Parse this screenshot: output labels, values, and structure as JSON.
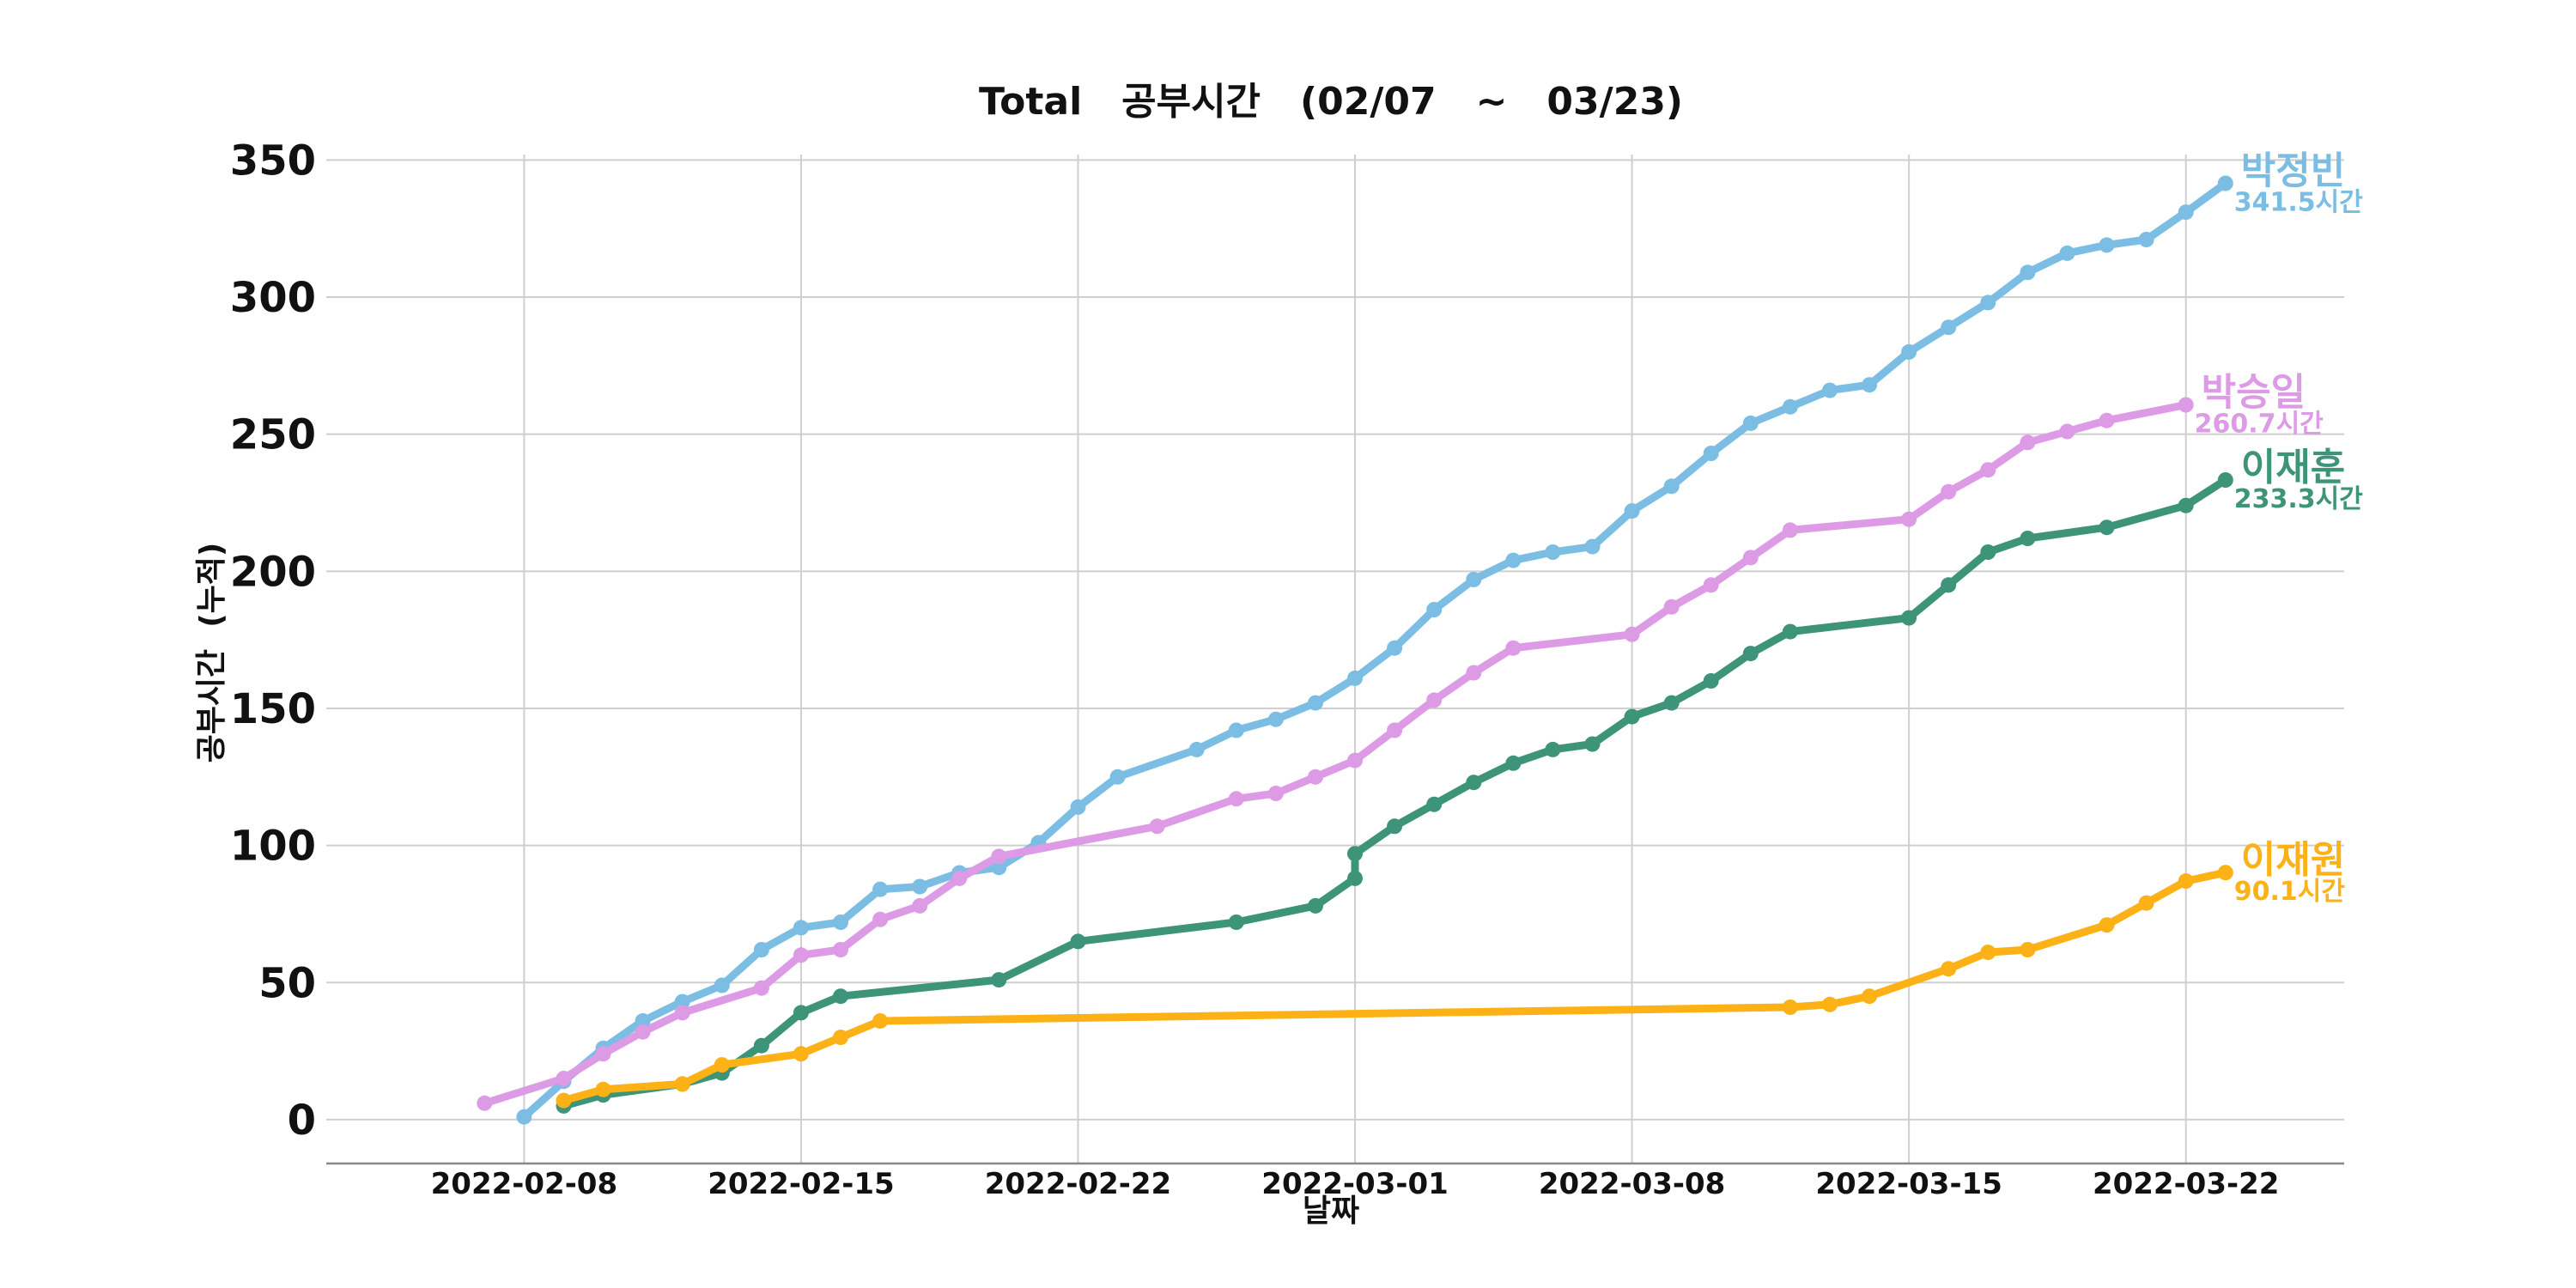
{
  "chart_data": {
    "type": "line",
    "title": "Total   공부시간   (02/07   ~   03/23)",
    "xlabel": "날짜",
    "ylabel": "공부시간  (누적)",
    "x_range": [
      "2022-02-03",
      "2022-03-26"
    ],
    "ylim": [
      -16,
      352
    ],
    "yticks": [
      0,
      50,
      100,
      150,
      200,
      250,
      300,
      350
    ],
    "xticks": [
      "2022-02-08",
      "2022-02-15",
      "2022-02-22",
      "2022-03-01",
      "2022-03-08",
      "2022-03-15",
      "2022-03-22"
    ],
    "grid": true,
    "legend": "none (series labelled at line ends)",
    "series": [
      {
        "name": "박정빈",
        "end_label": "341.5시간",
        "color": "#7bbde3",
        "points": [
          [
            "2022-02-08",
            1
          ],
          [
            "2022-02-09",
            14
          ],
          [
            "2022-02-10",
            26
          ],
          [
            "2022-02-11",
            36
          ],
          [
            "2022-02-12",
            43
          ],
          [
            "2022-02-13",
            49
          ],
          [
            "2022-02-14",
            62
          ],
          [
            "2022-02-15",
            70
          ],
          [
            "2022-02-16",
            72
          ],
          [
            "2022-02-17",
            84
          ],
          [
            "2022-02-18",
            85
          ],
          [
            "2022-02-19",
            90
          ],
          [
            "2022-02-20",
            92
          ],
          [
            "2022-02-21",
            101
          ],
          [
            "2022-02-22",
            114
          ],
          [
            "2022-02-23",
            125
          ],
          [
            "2022-02-25",
            135
          ],
          [
            "2022-02-26",
            142
          ],
          [
            "2022-02-27",
            146
          ],
          [
            "2022-02-28",
            152
          ],
          [
            "2022-03-01",
            161
          ],
          [
            "2022-03-02",
            172
          ],
          [
            "2022-03-03",
            186
          ],
          [
            "2022-03-04",
            197
          ],
          [
            "2022-03-05",
            204
          ],
          [
            "2022-03-06",
            207
          ],
          [
            "2022-03-07",
            209
          ],
          [
            "2022-03-08",
            222
          ],
          [
            "2022-03-09",
            231
          ],
          [
            "2022-03-10",
            243
          ],
          [
            "2022-03-11",
            254
          ],
          [
            "2022-03-12",
            260
          ],
          [
            "2022-03-13",
            266
          ],
          [
            "2022-03-14",
            268
          ],
          [
            "2022-03-15",
            280
          ],
          [
            "2022-03-16",
            289
          ],
          [
            "2022-03-17",
            298
          ],
          [
            "2022-03-18",
            309
          ],
          [
            "2022-03-19",
            316
          ],
          [
            "2022-03-20",
            319
          ],
          [
            "2022-03-21",
            321
          ],
          [
            "2022-03-22",
            331
          ],
          [
            "2022-03-23",
            341.5
          ]
        ]
      },
      {
        "name": "박승일",
        "end_label": "260.7시간",
        "color": "#dd9be6",
        "points": [
          [
            "2022-02-07",
            6
          ],
          [
            "2022-02-09",
            15
          ],
          [
            "2022-02-10",
            24
          ],
          [
            "2022-02-11",
            32
          ],
          [
            "2022-02-12",
            39
          ],
          [
            "2022-02-14",
            48
          ],
          [
            "2022-02-15",
            60
          ],
          [
            "2022-02-16",
            62
          ],
          [
            "2022-02-17",
            73
          ],
          [
            "2022-02-18",
            78
          ],
          [
            "2022-02-19",
            88
          ],
          [
            "2022-02-20",
            96
          ],
          [
            "2022-02-24",
            107
          ],
          [
            "2022-02-26",
            117
          ],
          [
            "2022-02-27",
            119
          ],
          [
            "2022-02-28",
            125
          ],
          [
            "2022-03-01",
            131
          ],
          [
            "2022-03-02",
            142
          ],
          [
            "2022-03-03",
            153
          ],
          [
            "2022-03-04",
            163
          ],
          [
            "2022-03-05",
            172
          ],
          [
            "2022-03-08",
            177
          ],
          [
            "2022-03-09",
            187
          ],
          [
            "2022-03-10",
            195
          ],
          [
            "2022-03-11",
            205
          ],
          [
            "2022-03-12",
            215
          ],
          [
            "2022-03-15",
            219
          ],
          [
            "2022-03-16",
            229
          ],
          [
            "2022-03-17",
            237
          ],
          [
            "2022-03-18",
            247
          ],
          [
            "2022-03-19",
            251
          ],
          [
            "2022-03-20",
            255
          ],
          [
            "2022-03-22",
            260.7
          ]
        ]
      },
      {
        "name": "이재훈",
        "end_label": "233.3시간",
        "color": "#3d9479",
        "points": [
          [
            "2022-02-09",
            5
          ],
          [
            "2022-02-10",
            9
          ],
          [
            "2022-02-12",
            13
          ],
          [
            "2022-02-13",
            17
          ],
          [
            "2022-02-14",
            27
          ],
          [
            "2022-02-15",
            39
          ],
          [
            "2022-02-16",
            45
          ],
          [
            "2022-02-20",
            51
          ],
          [
            "2022-02-22",
            65
          ],
          [
            "2022-02-26",
            72
          ],
          [
            "2022-02-28",
            78
          ],
          [
            "2022-02-29",
            88
          ],
          [
            "2022-03-01",
            97
          ],
          [
            "2022-03-02",
            107
          ],
          [
            "2022-03-03",
            115
          ],
          [
            "2022-03-04",
            123
          ],
          [
            "2022-03-05",
            130
          ],
          [
            "2022-03-06",
            135
          ],
          [
            "2022-03-07",
            137
          ],
          [
            "2022-03-08",
            147
          ],
          [
            "2022-03-09",
            152
          ],
          [
            "2022-03-10",
            160
          ],
          [
            "2022-03-11",
            170
          ],
          [
            "2022-03-12",
            178
          ],
          [
            "2022-03-15",
            183
          ],
          [
            "2022-03-16",
            195
          ],
          [
            "2022-03-17",
            207
          ],
          [
            "2022-03-18",
            212
          ],
          [
            "2022-03-20",
            216
          ],
          [
            "2022-03-22",
            224
          ],
          [
            "2022-03-23",
            233.3
          ]
        ]
      },
      {
        "name": "이재원",
        "end_label": "90.1시간",
        "color": "#fcb216",
        "points": [
          [
            "2022-02-09",
            7
          ],
          [
            "2022-02-10",
            11
          ],
          [
            "2022-02-12",
            13
          ],
          [
            "2022-02-13",
            20
          ],
          [
            "2022-02-15",
            24
          ],
          [
            "2022-02-16",
            30
          ],
          [
            "2022-02-17",
            36
          ],
          [
            "2022-03-12",
            41
          ],
          [
            "2022-03-13",
            42
          ],
          [
            "2022-03-14",
            45
          ],
          [
            "2022-03-16",
            55
          ],
          [
            "2022-03-17",
            61
          ],
          [
            "2022-03-18",
            62
          ],
          [
            "2022-03-20",
            71
          ],
          [
            "2022-03-21",
            79
          ],
          [
            "2022-03-22",
            87
          ],
          [
            "2022-03-23",
            90.1
          ]
        ]
      }
    ]
  }
}
